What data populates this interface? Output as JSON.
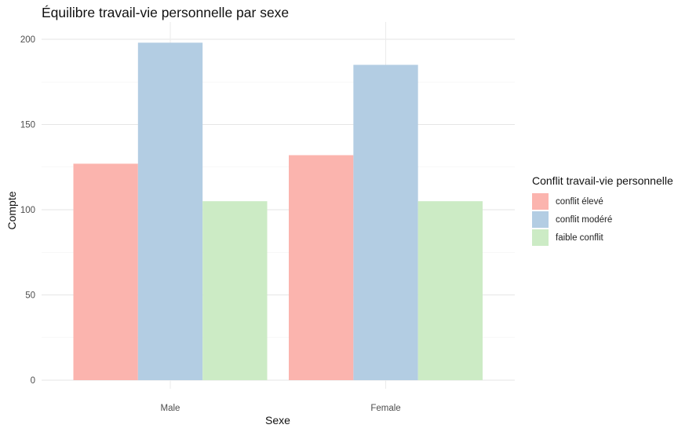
{
  "chart_data": {
    "type": "bar",
    "title": "Équilibre travail-vie personnelle par sexe",
    "xlabel": "Sexe",
    "ylabel": "Compte",
    "categories": [
      "Male",
      "Female"
    ],
    "series": [
      {
        "name": "conflit élevé",
        "values": [
          127,
          132
        ],
        "color": "#FBB4AE"
      },
      {
        "name": "conflit modéré",
        "values": [
          198,
          185
        ],
        "color": "#B3CDE3"
      },
      {
        "name": "faible conflit",
        "values": [
          105,
          105
        ],
        "color": "#CCEBC5"
      }
    ],
    "ylim": [
      0,
      210
    ],
    "yticks": [
      0,
      50,
      100,
      150,
      200
    ],
    "grid": true,
    "legend": {
      "title": "Conflit travail-vie personnelle",
      "position": "right"
    }
  }
}
